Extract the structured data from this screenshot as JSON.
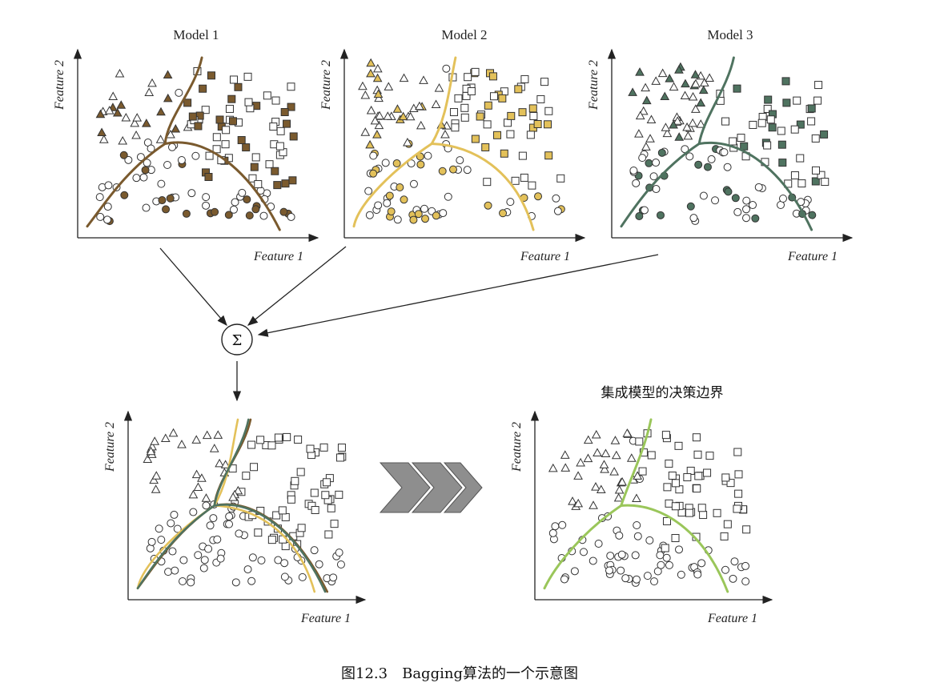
{
  "models": [
    {
      "title": "Model 1",
      "color": "#7a5a2e"
    },
    {
      "title": "Model 2",
      "color": "#e3c15a"
    },
    {
      "title": "Model 3",
      "color": "#4f7360"
    }
  ],
  "axis": {
    "x": "Feature 1",
    "y": "Feature 2"
  },
  "aggregator_symbol": "Σ",
  "result_title": "集成模型的决策边界",
  "result_boundary_color": "#9ac65a",
  "caption": "图12.3　Bagging算法的一个示意图",
  "classes": [
    "triangle",
    "square",
    "circle"
  ]
}
